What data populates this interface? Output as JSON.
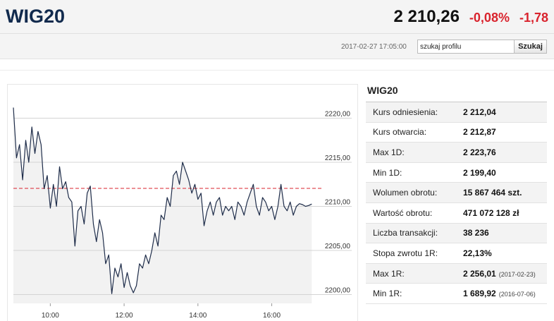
{
  "header": {
    "ticker": "WIG20",
    "price": "2 210,26",
    "change_pct": "-0,08%",
    "change_abs": "-1,78",
    "timestamp": "2017-02-27 17:05:00",
    "search_value": "szukaj profilu",
    "search_button": "Szukaj",
    "accent_color": "#112a4d",
    "down_color": "#d9232d"
  },
  "stats": {
    "title": "WIG20",
    "rows": [
      {
        "label": "Kurs odniesienia:",
        "value": "2 212,04",
        "date": ""
      },
      {
        "label": "Kurs otwarcia:",
        "value": "2 212,87",
        "date": ""
      },
      {
        "label": "Max 1D:",
        "value": "2 223,76",
        "date": ""
      },
      {
        "label": "Min 1D:",
        "value": "2 199,40",
        "date": ""
      },
      {
        "label": "Wolumen obrotu:",
        "value": "15 867 464 szt.",
        "date": ""
      },
      {
        "label": "Wartość obrotu:",
        "value": "471 072 128 zł",
        "date": ""
      },
      {
        "label": "Liczba transakcji:",
        "value": "38 236",
        "date": ""
      },
      {
        "label": "Stopa zwrotu 1R:",
        "value": "22,13%",
        "date": ""
      },
      {
        "label": "Max 1R:",
        "value": "2 256,01",
        "date": "(2017-02-23)"
      },
      {
        "label": "Min 1R:",
        "value": "1 689,92",
        "date": "(2016-07-06)"
      }
    ]
  },
  "chart_data": {
    "type": "line",
    "title": "",
    "xlabel": "",
    "ylabel": "",
    "x_ticks": [
      "10:00",
      "12:00",
      "14:00",
      "16:00"
    ],
    "y_ticks": [
      "2200,00",
      "2205,00",
      "2210,00",
      "2215,00",
      "2220,00"
    ],
    "ylim": [
      2199,
      2223
    ],
    "xlim": [
      "09:00",
      "17:15"
    ],
    "reference_value": 2212.04,
    "reference_color": "#d9232d",
    "line_color": "#1f2d4a",
    "fill_color": "#f2f2f2",
    "grid": true,
    "series": [
      {
        "values": [
          [
            "09:00",
            2221.2
          ],
          [
            "09:05",
            2215.5
          ],
          [
            "09:10",
            2217.0
          ],
          [
            "09:15",
            2213.0
          ],
          [
            "09:20",
            2217.5
          ],
          [
            "09:25",
            2215.0
          ],
          [
            "09:30",
            2219.0
          ],
          [
            "09:35",
            2216.0
          ],
          [
            "09:40",
            2218.5
          ],
          [
            "09:45",
            2217.0
          ],
          [
            "09:50",
            2212.0
          ],
          [
            "09:55",
            2213.5
          ],
          [
            "10:00",
            2209.8
          ],
          [
            "10:05",
            2212.5
          ],
          [
            "10:10",
            2210.0
          ],
          [
            "10:15",
            2214.5
          ],
          [
            "10:20",
            2212.0
          ],
          [
            "10:25",
            2212.8
          ],
          [
            "10:30",
            2211.0
          ],
          [
            "10:35",
            2210.5
          ],
          [
            "10:40",
            2205.5
          ],
          [
            "10:45",
            2209.5
          ],
          [
            "10:50",
            2210.0
          ],
          [
            "10:55",
            2208.0
          ],
          [
            "11:00",
            2211.5
          ],
          [
            "11:05",
            2212.3
          ],
          [
            "11:10",
            2208.0
          ],
          [
            "11:15",
            2206.0
          ],
          [
            "11:20",
            2208.5
          ],
          [
            "11:25",
            2207.0
          ],
          [
            "11:30",
            2203.5
          ],
          [
            "11:35",
            2204.5
          ],
          [
            "11:40",
            2200.1
          ],
          [
            "11:45",
            2203.0
          ],
          [
            "11:50",
            2202.0
          ],
          [
            "11:55",
            2203.5
          ],
          [
            "12:00",
            2200.8
          ],
          [
            "12:05",
            2202.5
          ],
          [
            "12:10",
            2201.0
          ],
          [
            "12:15",
            2200.2
          ],
          [
            "12:20",
            2201.0
          ],
          [
            "12:25",
            2203.5
          ],
          [
            "12:30",
            2203.0
          ],
          [
            "12:35",
            2204.5
          ],
          [
            "12:40",
            2203.5
          ],
          [
            "12:45",
            2205.0
          ],
          [
            "12:50",
            2207.0
          ],
          [
            "12:55",
            2205.5
          ],
          [
            "13:00",
            2209.0
          ],
          [
            "13:05",
            2208.5
          ],
          [
            "13:10",
            2211.0
          ],
          [
            "13:15",
            2210.0
          ],
          [
            "13:20",
            2213.5
          ],
          [
            "13:25",
            2214.0
          ],
          [
            "13:30",
            2212.5
          ],
          [
            "13:35",
            2215.0
          ],
          [
            "13:40",
            2214.0
          ],
          [
            "13:45",
            2213.0
          ],
          [
            "13:50",
            2211.5
          ],
          [
            "13:55",
            2212.5
          ],
          [
            "14:00",
            2210.8
          ],
          [
            "14:05",
            2211.5
          ],
          [
            "14:10",
            2207.8
          ],
          [
            "14:15",
            2209.5
          ],
          [
            "14:20",
            2210.5
          ],
          [
            "14:25",
            2209.0
          ],
          [
            "14:30",
            2210.5
          ],
          [
            "14:35",
            2211.0
          ],
          [
            "14:40",
            2209.0
          ],
          [
            "14:45",
            2210.0
          ],
          [
            "14:50",
            2209.5
          ],
          [
            "14:55",
            2210.0
          ],
          [
            "15:00",
            2208.5
          ],
          [
            "15:05",
            2210.5
          ],
          [
            "15:10",
            2210.0
          ],
          [
            "15:15",
            2209.0
          ],
          [
            "15:20",
            2210.5
          ],
          [
            "15:25",
            2211.5
          ],
          [
            "15:30",
            2212.5
          ],
          [
            "15:35",
            2210.0
          ],
          [
            "15:40",
            2209.0
          ],
          [
            "15:45",
            2211.0
          ],
          [
            "15:50",
            2210.5
          ],
          [
            "15:55",
            2209.5
          ],
          [
            "16:00",
            2210.0
          ],
          [
            "16:05",
            2208.5
          ],
          [
            "16:10",
            2210.0
          ],
          [
            "16:15",
            2212.5
          ],
          [
            "16:20",
            2210.0
          ],
          [
            "16:25",
            2209.5
          ],
          [
            "16:30",
            2210.5
          ],
          [
            "16:35",
            2209.0
          ],
          [
            "16:40",
            2210.0
          ],
          [
            "16:45",
            2210.3
          ],
          [
            "16:50",
            2210.2
          ],
          [
            "16:55",
            2210.0
          ],
          [
            "17:00",
            2210.1
          ],
          [
            "17:05",
            2210.26
          ]
        ]
      }
    ]
  }
}
